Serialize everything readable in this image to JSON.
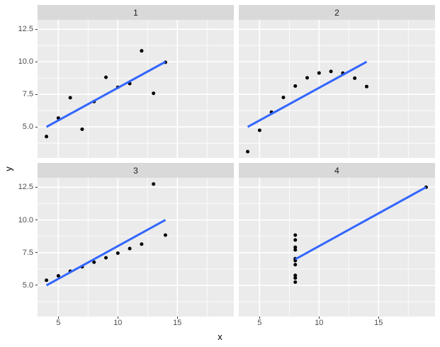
{
  "chart_data": {
    "type": "scatter",
    "title": "",
    "xlabel": "x",
    "ylabel": "y",
    "xlim": [
      3.25,
      19.75
    ],
    "ylim": [
      2.618,
      13.222
    ],
    "x_tick_values": [
      5,
      10,
      15
    ],
    "x_tick_labels": [
      "5",
      "10",
      "15"
    ],
    "y_tick_values": [
      5.0,
      7.5,
      10.0,
      12.5
    ],
    "y_tick_labels": [
      "5.0",
      "7.5",
      "10.0",
      "12.5"
    ],
    "x_minor_tick_values": [
      7.5,
      12.5,
      17.5
    ],
    "y_minor_tick_values": [
      3.75,
      6.25,
      8.75,
      11.25
    ],
    "grid": true,
    "legend": "none",
    "facet_layout": "2x2",
    "facets": [
      {
        "label": "1",
        "points": [
          [
            10,
            8.04
          ],
          [
            8,
            6.95
          ],
          [
            13,
            7.58
          ],
          [
            9,
            8.81
          ],
          [
            11,
            8.33
          ],
          [
            14,
            9.96
          ],
          [
            6,
            7.24
          ],
          [
            4,
            4.26
          ],
          [
            12,
            10.84
          ],
          [
            7,
            4.82
          ],
          [
            5,
            5.68
          ]
        ],
        "regression_line": {
          "x_start": 4,
          "y_start": 5.0,
          "x_end": 14,
          "y_end": 10.0
        }
      },
      {
        "label": "2",
        "points": [
          [
            10,
            9.14
          ],
          [
            8,
            8.14
          ],
          [
            13,
            8.74
          ],
          [
            9,
            8.77
          ],
          [
            11,
            9.26
          ],
          [
            14,
            8.1
          ],
          [
            6,
            6.13
          ],
          [
            4,
            3.1
          ],
          [
            12,
            9.13
          ],
          [
            7,
            7.26
          ],
          [
            5,
            4.74
          ]
        ],
        "regression_line": {
          "x_start": 4,
          "y_start": 5.0,
          "x_end": 14,
          "y_end": 10.0
        }
      },
      {
        "label": "3",
        "points": [
          [
            10,
            7.46
          ],
          [
            8,
            6.77
          ],
          [
            13,
            12.74
          ],
          [
            9,
            7.11
          ],
          [
            11,
            7.81
          ],
          [
            14,
            8.84
          ],
          [
            6,
            6.08
          ],
          [
            4,
            5.39
          ],
          [
            12,
            8.15
          ],
          [
            7,
            6.42
          ],
          [
            5,
            5.73
          ]
        ],
        "regression_line": {
          "x_start": 4,
          "y_start": 5.0,
          "x_end": 14,
          "y_end": 10.0
        }
      },
      {
        "label": "4",
        "points": [
          [
            8,
            6.58
          ],
          [
            8,
            5.76
          ],
          [
            8,
            7.71
          ],
          [
            8,
            8.84
          ],
          [
            8,
            8.47
          ],
          [
            8,
            7.04
          ],
          [
            8,
            5.25
          ],
          [
            19,
            12.5
          ],
          [
            8,
            5.56
          ],
          [
            8,
            7.91
          ],
          [
            8,
            6.89
          ]
        ],
        "regression_line": {
          "x_start": 8,
          "y_start": 7.0,
          "x_end": 19,
          "y_end": 12.5
        }
      }
    ],
    "colors": {
      "background": "#FFFFFF",
      "panel_background": "#EBEBEB",
      "strip_background": "#D9D9D9",
      "strip_text": "#1A1A1A",
      "grid_line": "#FFFFFF",
      "point": "#000000",
      "regression_line": "#3366FF",
      "tick_label": "#4D4D4D",
      "tick_mark": "#333333",
      "axis_title": "#000000"
    }
  }
}
